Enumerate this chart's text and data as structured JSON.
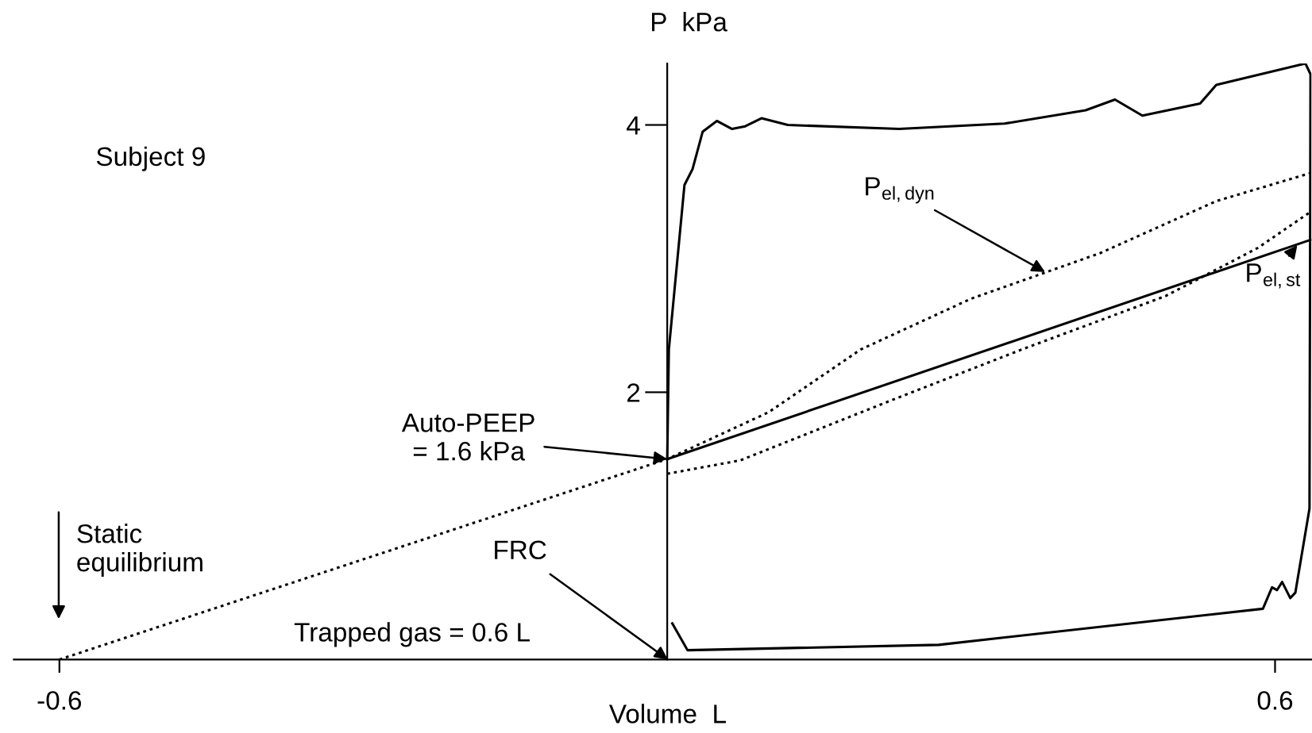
{
  "chart_data": {
    "type": "line",
    "xlabel": "Volume  L",
    "ylabel": "P  kPa",
    "xlim": [
      -0.645,
      0.636
    ],
    "ylim": [
      0,
      4.46
    ],
    "xticks": [
      -0.6,
      0.6
    ],
    "yticks": [
      2,
      4
    ],
    "grid": false,
    "legend": false,
    "marker": "none",
    "series": [
      {
        "color": "#000000",
        "line_style": "solid",
        "x": [
          0,
          0.0016,
          0.017,
          0.025,
          0.035,
          0.049,
          0.064,
          0.077,
          0.093,
          0.119,
          0.229,
          0.333,
          0.413,
          0.442,
          0.469,
          0.526,
          0.542,
          0.63,
          0.635,
          0.634,
          0.62,
          0.615,
          0.607,
          0.602,
          0.597,
          0.588,
          0.268,
          0.02,
          0.005
        ],
        "values": [
          1.5,
          2.32,
          3.55,
          3.67,
          3.95,
          4.03,
          3.97,
          3.99,
          4.05,
          4.0,
          3.97,
          4.01,
          4.11,
          4.19,
          4.07,
          4.16,
          4.3,
          4.46,
          4.38,
          1.13,
          0.5,
          0.46,
          0.58,
          0.52,
          0.54,
          0.38,
          0.11,
          0.07,
          0.27
        ]
      },
      {
        "color": "#000000",
        "line_style": "solid",
        "x": [
          0,
          0.635
        ],
        "values": [
          1.5,
          3.14
        ]
      },
      {
        "color": "#000000",
        "line_style": "dotted",
        "x": [
          -0.6,
          0,
          0.1,
          0.191,
          0.3,
          0.427,
          0.542,
          0.635
        ],
        "values": [
          0,
          1.5,
          1.85,
          2.32,
          2.7,
          3.04,
          3.43,
          3.64
        ]
      },
      {
        "color": "#000000",
        "line_style": "dotted",
        "x": [
          0,
          0.072,
          0.218,
          0.35,
          0.492,
          0.583,
          0.635
        ],
        "values": [
          1.39,
          1.49,
          1.93,
          2.32,
          2.72,
          3.08,
          3.35
        ]
      }
    ],
    "annotations": [
      "Subject 9",
      {
        "text": "P$_{el,dyn}$",
        "x": 0.373,
        "y": 2.9
      },
      {
        "text": "P$_{el,st}$",
        "x": 0.622,
        "y": 3.1
      },
      {
        "text": "Auto-PEEP\n= 1.6 kPa",
        "x": 0,
        "y": 1.5
      },
      "Static\nequilibrium",
      "FRC",
      "Trapped gas = 0.6 L"
    ]
  }
}
